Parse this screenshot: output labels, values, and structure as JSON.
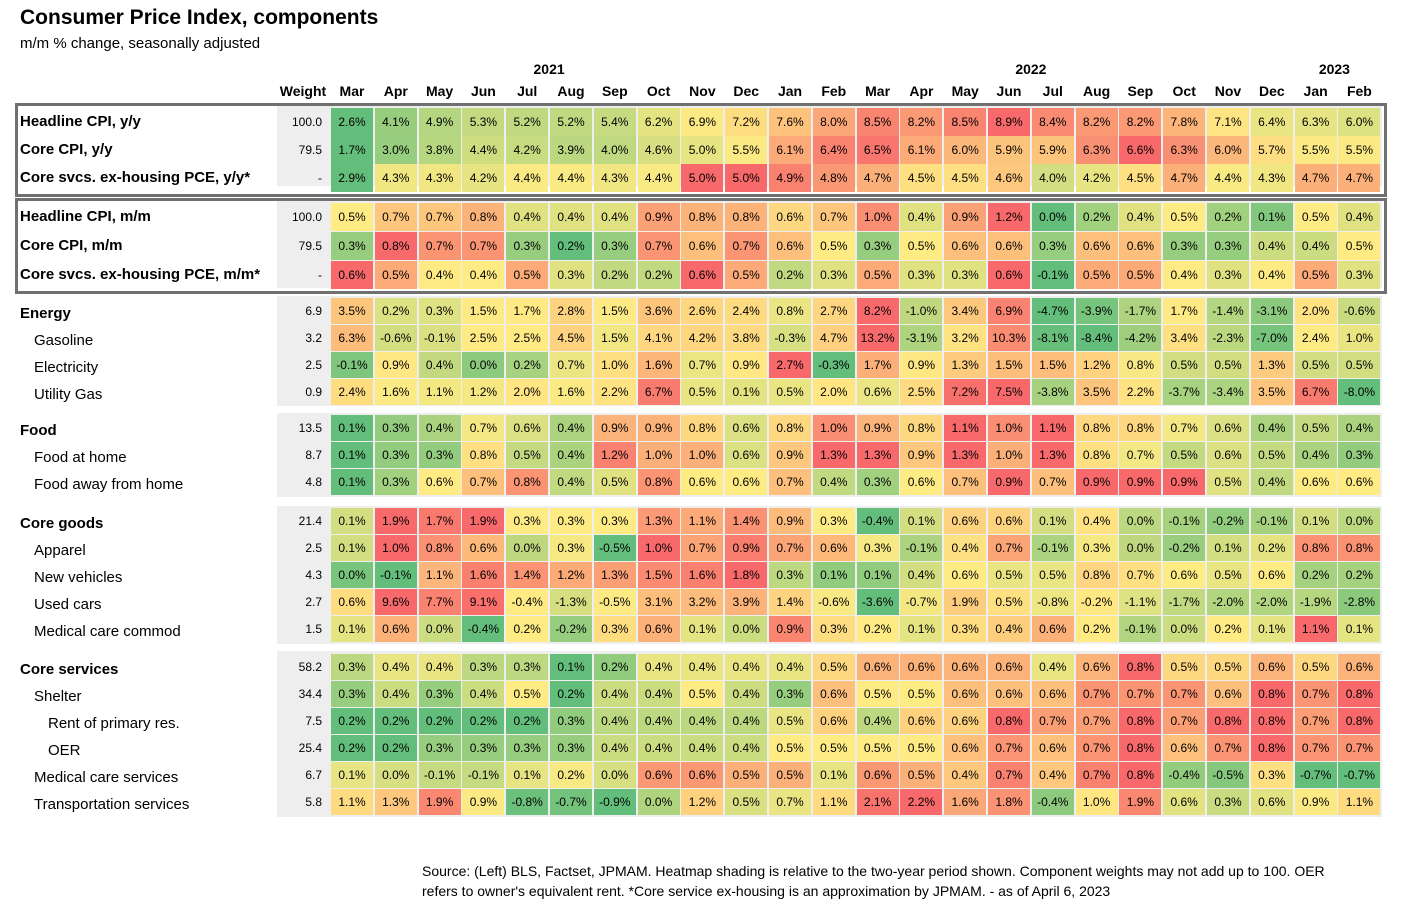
{
  "title": "Consumer Price Index, components",
  "subtitle": "m/m % change, seasonally adjusted",
  "source": "Source: (Left) BLS, Factset, JPMAM. Heatmap shading is relative to the two-year period shown. Component weights may not add up to 100. OER refers to owner's equivalent rent. *Core service ex-housing is an approximation by JPMAM. -  as of April 6, 2023",
  "chart_data": {
    "type": "heatmap",
    "title": "Consumer Price Index, components",
    "subtitle": "m/m % change, seasonally adjusted",
    "weight_header": "Weight",
    "years": [
      {
        "label": "2021",
        "first": 0,
        "last": 9
      },
      {
        "label": "2022",
        "first": 10,
        "last": 21
      },
      {
        "label": "2023",
        "first": 22,
        "last": 23
      }
    ],
    "months": [
      "Mar",
      "Apr",
      "May",
      "Jun",
      "Jul",
      "Aug",
      "Sep",
      "Oct",
      "Nov",
      "Dec",
      "Jan",
      "Feb",
      "Mar",
      "Apr",
      "May",
      "Jun",
      "Jul",
      "Aug",
      "Sep",
      "Oct",
      "Nov",
      "Dec",
      "Jan",
      "Feb"
    ],
    "color_scale": {
      "low": "#63be7b",
      "mid": "#ffeb84",
      "high": "#f8696b"
    },
    "blocks": [
      {
        "boxed": true,
        "rows": [
          {
            "label": "Headline CPI, y/y",
            "bold": true,
            "indent": 0,
            "weight": "100.0",
            "values": [
              2.6,
              4.1,
              4.9,
              5.3,
              5.2,
              5.2,
              5.4,
              6.2,
              6.9,
              7.2,
              7.6,
              8.0,
              8.5,
              8.2,
              8.5,
              8.9,
              8.4,
              8.2,
              8.2,
              7.8,
              7.1,
              6.4,
              6.3,
              6.0
            ]
          },
          {
            "label": "Core CPI, y/y",
            "bold": true,
            "indent": 0,
            "weight": "79.5",
            "values": [
              1.7,
              3.0,
              3.8,
              4.4,
              4.2,
              3.9,
              4.0,
              4.6,
              5.0,
              5.5,
              6.1,
              6.4,
              6.5,
              6.1,
              6.0,
              5.9,
              5.9,
              6.3,
              6.6,
              6.3,
              6.0,
              5.7,
              5.5,
              5.5
            ]
          },
          {
            "label": "Core svcs. ex-housing PCE, y/y*",
            "bold": true,
            "indent": 0,
            "weight": "-",
            "values": [
              2.9,
              4.3,
              4.3,
              4.2,
              4.4,
              4.4,
              4.3,
              4.4,
              5.0,
              5.0,
              4.9,
              4.8,
              4.7,
              4.5,
              4.5,
              4.6,
              4.0,
              4.2,
              4.5,
              4.7,
              4.4,
              4.3,
              4.7,
              4.7
            ]
          }
        ]
      },
      {
        "boxed": true,
        "rows": [
          {
            "label": "Headline CPI, m/m",
            "bold": true,
            "indent": 0,
            "weight": "100.0",
            "values": [
              0.5,
              0.7,
              0.7,
              0.8,
              0.4,
              0.4,
              0.4,
              0.9,
              0.8,
              0.8,
              0.6,
              0.7,
              1.0,
              0.4,
              0.9,
              1.2,
              0.0,
              0.2,
              0.4,
              0.5,
              0.2,
              0.1,
              0.5,
              0.4
            ]
          },
          {
            "label": "Core CPI, m/m",
            "bold": true,
            "indent": 0,
            "weight": "79.5",
            "values": [
              0.3,
              0.8,
              0.7,
              0.7,
              0.3,
              0.2,
              0.3,
              0.7,
              0.6,
              0.7,
              0.6,
              0.5,
              0.3,
              0.5,
              0.6,
              0.6,
              0.3,
              0.6,
              0.6,
              0.3,
              0.3,
              0.4,
              0.4,
              0.5
            ]
          },
          {
            "label": "Core svcs. ex-housing PCE, m/m*",
            "bold": true,
            "indent": 0,
            "weight": "-",
            "values": [
              0.6,
              0.5,
              0.4,
              0.4,
              0.5,
              0.3,
              0.2,
              0.2,
              0.6,
              0.5,
              0.2,
              0.3,
              0.5,
              0.3,
              0.3,
              0.6,
              -0.1,
              0.5,
              0.5,
              0.4,
              0.3,
              0.4,
              0.5,
              0.3
            ]
          }
        ]
      },
      {
        "boxed": false,
        "rows": [
          {
            "label": "Energy",
            "bold": true,
            "indent": 0,
            "weight": "6.9",
            "values": [
              3.5,
              0.2,
              0.3,
              1.5,
              1.7,
              2.8,
              1.5,
              3.6,
              2.6,
              2.4,
              0.8,
              2.7,
              8.2,
              -1.0,
              3.4,
              6.9,
              -4.7,
              -3.9,
              -1.7,
              1.7,
              -1.4,
              -3.1,
              2.0,
              -0.6
            ]
          },
          {
            "label": "Gasoline",
            "bold": false,
            "indent": 1,
            "weight": "3.2",
            "values": [
              6.3,
              -0.6,
              -0.1,
              2.5,
              2.5,
              4.5,
              1.5,
              4.1,
              4.2,
              3.8,
              -0.3,
              4.7,
              13.2,
              -3.1,
              3.2,
              10.3,
              -8.1,
              -8.4,
              -4.2,
              3.4,
              -2.3,
              -7.0,
              2.4,
              1.0
            ]
          },
          {
            "label": "Electricity",
            "bold": false,
            "indent": 1,
            "weight": "2.5",
            "values": [
              -0.1,
              0.9,
              0.4,
              0.0,
              0.2,
              0.7,
              1.0,
              1.6,
              0.7,
              0.9,
              2.7,
              -0.3,
              1.7,
              0.9,
              1.3,
              1.5,
              1.5,
              1.2,
              0.8,
              0.5,
              0.5,
              1.3,
              0.5,
              0.5
            ]
          },
          {
            "label": "Utility Gas",
            "bold": false,
            "indent": 1,
            "weight": "0.9",
            "values": [
              2.4,
              1.6,
              1.1,
              1.2,
              2.0,
              1.6,
              2.2,
              6.7,
              0.5,
              0.1,
              0.5,
              2.0,
              0.6,
              2.5,
              7.2,
              7.5,
              -3.8,
              3.5,
              2.2,
              -3.7,
              -3.4,
              3.5,
              6.7,
              -8.0
            ]
          }
        ]
      },
      {
        "boxed": false,
        "rows": [
          {
            "label": "Food",
            "bold": true,
            "indent": 0,
            "weight": "13.5",
            "values": [
              0.1,
              0.3,
              0.4,
              0.7,
              0.6,
              0.4,
              0.9,
              0.9,
              0.8,
              0.6,
              0.8,
              1.0,
              0.9,
              0.8,
              1.1,
              1.0,
              1.1,
              0.8,
              0.8,
              0.7,
              0.6,
              0.4,
              0.5,
              0.4
            ]
          },
          {
            "label": "Food at home",
            "bold": false,
            "indent": 1,
            "weight": "8.7",
            "values": [
              0.1,
              0.3,
              0.3,
              0.8,
              0.5,
              0.4,
              1.2,
              1.0,
              1.0,
              0.6,
              0.9,
              1.3,
              1.3,
              0.9,
              1.3,
              1.0,
              1.3,
              0.8,
              0.7,
              0.5,
              0.6,
              0.5,
              0.4,
              0.3
            ]
          },
          {
            "label": "Food away from home",
            "bold": false,
            "indent": 1,
            "weight": "4.8",
            "values": [
              0.1,
              0.3,
              0.6,
              0.7,
              0.8,
              0.4,
              0.5,
              0.8,
              0.6,
              0.6,
              0.7,
              0.4,
              0.3,
              0.6,
              0.7,
              0.9,
              0.7,
              0.9,
              0.9,
              0.9,
              0.5,
              0.4,
              0.6,
              0.6
            ]
          }
        ]
      },
      {
        "boxed": false,
        "rows": [
          {
            "label": "Core goods",
            "bold": true,
            "indent": 0,
            "weight": "21.4",
            "values": [
              0.1,
              1.9,
              1.7,
              1.9,
              0.3,
              0.3,
              0.3,
              1.3,
              1.1,
              1.4,
              0.9,
              0.3,
              -0.4,
              0.1,
              0.6,
              0.6,
              0.1,
              0.4,
              0.0,
              -0.1,
              -0.2,
              -0.1,
              0.1,
              0.0
            ]
          },
          {
            "label": "Apparel",
            "bold": false,
            "indent": 1,
            "weight": "2.5",
            "values": [
              0.1,
              1.0,
              0.8,
              0.6,
              0.0,
              0.3,
              -0.5,
              1.0,
              0.7,
              0.9,
              0.7,
              0.6,
              0.3,
              -0.1,
              0.4,
              0.7,
              -0.1,
              0.3,
              0.0,
              -0.2,
              0.1,
              0.2,
              0.8,
              0.8
            ]
          },
          {
            "label": "New vehicles",
            "bold": false,
            "indent": 1,
            "weight": "4.3",
            "values": [
              0.0,
              -0.1,
              1.1,
              1.6,
              1.4,
              1.2,
              1.3,
              1.5,
              1.6,
              1.8,
              0.3,
              0.1,
              0.1,
              0.4,
              0.6,
              0.5,
              0.5,
              0.8,
              0.7,
              0.6,
              0.5,
              0.6,
              0.2,
              0.2
            ]
          },
          {
            "label": "Used cars",
            "bold": false,
            "indent": 1,
            "weight": "2.7",
            "values": [
              0.6,
              9.6,
              7.7,
              9.1,
              -0.4,
              -1.3,
              -0.5,
              3.1,
              3.2,
              3.9,
              1.4,
              -0.6,
              -3.6,
              -0.7,
              1.9,
              0.5,
              -0.8,
              -0.2,
              -1.1,
              -1.7,
              -2.0,
              -2.0,
              -1.9,
              -2.8
            ]
          },
          {
            "label": "Medical care commod",
            "bold": false,
            "indent": 1,
            "weight": "1.5",
            "values": [
              0.1,
              0.6,
              0.0,
              -0.4,
              0.2,
              -0.2,
              0.3,
              0.6,
              0.1,
              0.0,
              0.9,
              0.3,
              0.2,
              0.1,
              0.3,
              0.4,
              0.6,
              0.2,
              -0.1,
              0.0,
              0.2,
              0.1,
              1.1,
              0.1
            ]
          }
        ]
      },
      {
        "boxed": false,
        "rows": [
          {
            "label": "Core services",
            "bold": true,
            "indent": 0,
            "weight": "58.2",
            "values": [
              0.3,
              0.4,
              0.4,
              0.3,
              0.3,
              0.1,
              0.2,
              0.4,
              0.4,
              0.4,
              0.4,
              0.5,
              0.6,
              0.6,
              0.6,
              0.6,
              0.4,
              0.6,
              0.8,
              0.5,
              0.5,
              0.6,
              0.5,
              0.6
            ]
          },
          {
            "label": "Shelter",
            "bold": false,
            "indent": 1,
            "weight": "34.4",
            "values": [
              0.3,
              0.4,
              0.3,
              0.4,
              0.5,
              0.2,
              0.4,
              0.4,
              0.5,
              0.4,
              0.3,
              0.6,
              0.5,
              0.5,
              0.6,
              0.6,
              0.6,
              0.7,
              0.7,
              0.7,
              0.6,
              0.8,
              0.7,
              0.8
            ]
          },
          {
            "label": "Rent of primary res.",
            "bold": false,
            "indent": 2,
            "weight": "7.5",
            "values": [
              0.2,
              0.2,
              0.2,
              0.2,
              0.2,
              0.3,
              0.4,
              0.4,
              0.4,
              0.4,
              0.5,
              0.6,
              0.4,
              0.6,
              0.6,
              0.8,
              0.7,
              0.7,
              0.8,
              0.7,
              0.8,
              0.8,
              0.7,
              0.8
            ]
          },
          {
            "label": "OER",
            "bold": false,
            "indent": 2,
            "weight": "25.4",
            "values": [
              0.2,
              0.2,
              0.3,
              0.3,
              0.3,
              0.3,
              0.4,
              0.4,
              0.4,
              0.4,
              0.5,
              0.5,
              0.5,
              0.5,
              0.6,
              0.7,
              0.6,
              0.7,
              0.8,
              0.6,
              0.7,
              0.8,
              0.7,
              0.7
            ]
          },
          {
            "label": "Medical care services",
            "bold": false,
            "indent": 1,
            "weight": "6.7",
            "values": [
              0.1,
              0.0,
              -0.1,
              -0.1,
              0.1,
              0.2,
              0.0,
              0.6,
              0.6,
              0.5,
              0.5,
              0.1,
              0.6,
              0.5,
              0.4,
              0.7,
              0.4,
              0.7,
              0.8,
              -0.4,
              -0.5,
              0.3,
              -0.7,
              -0.7
            ]
          },
          {
            "label": "Transportation services",
            "bold": false,
            "indent": 1,
            "weight": "5.8",
            "values": [
              1.1,
              1.3,
              1.9,
              0.9,
              -0.8,
              -0.7,
              -0.9,
              0.0,
              1.2,
              0.5,
              0.7,
              1.1,
              2.1,
              2.2,
              1.6,
              1.8,
              -0.4,
              1.0,
              1.9,
              0.6,
              0.3,
              0.6,
              0.9,
              1.1
            ]
          }
        ]
      }
    ]
  }
}
